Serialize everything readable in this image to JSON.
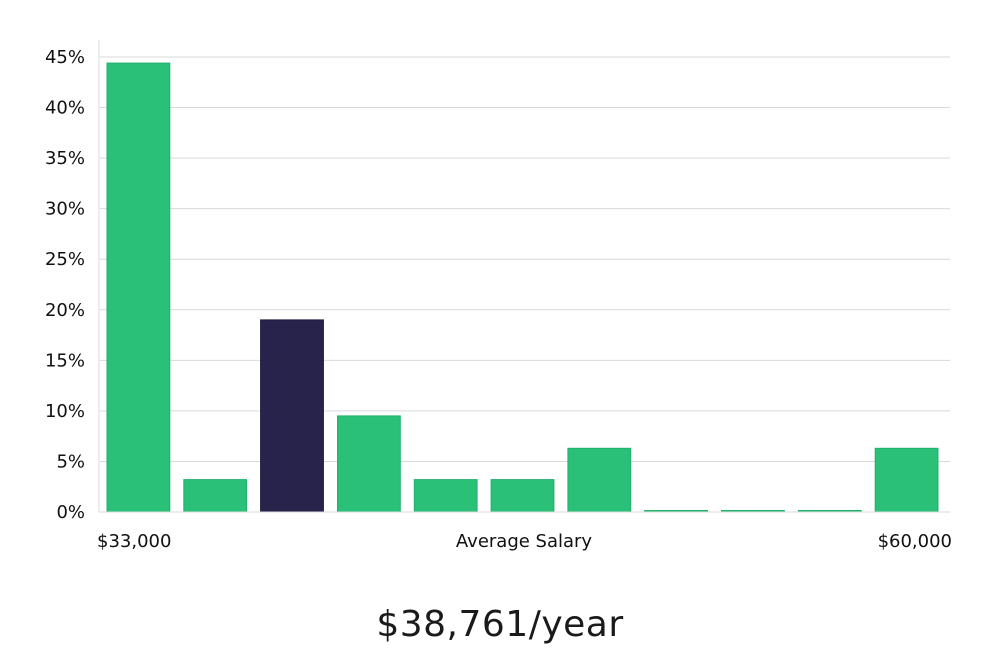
{
  "chart_data": {
    "type": "bar",
    "categories": [
      "b1",
      "b2",
      "b3",
      "b4",
      "b5",
      "b6",
      "b7",
      "b8",
      "b9",
      "b10",
      "b11"
    ],
    "values": [
      44.4,
      3.2,
      19.0,
      9.5,
      3.2,
      3.2,
      6.3,
      0,
      0,
      0,
      6.3
    ],
    "highlight_index": 2,
    "bar_color": "#2ac078",
    "highlight_color": "#27234a",
    "grid_color": "#d9d9d9",
    "ylim": [
      0,
      45
    ],
    "yticks": [
      "0%",
      "5%",
      "10%",
      "15%",
      "20%",
      "25%",
      "30%",
      "35%",
      "40%",
      "45%"
    ],
    "ytick_values": [
      0,
      5,
      10,
      15,
      20,
      25,
      30,
      35,
      40,
      45
    ],
    "x_min_label": "$33,000",
    "x_max_label": "$60,000",
    "xlabel": "Average Salary",
    "grid": true
  },
  "summary": {
    "salary": "$38,761/year"
  }
}
